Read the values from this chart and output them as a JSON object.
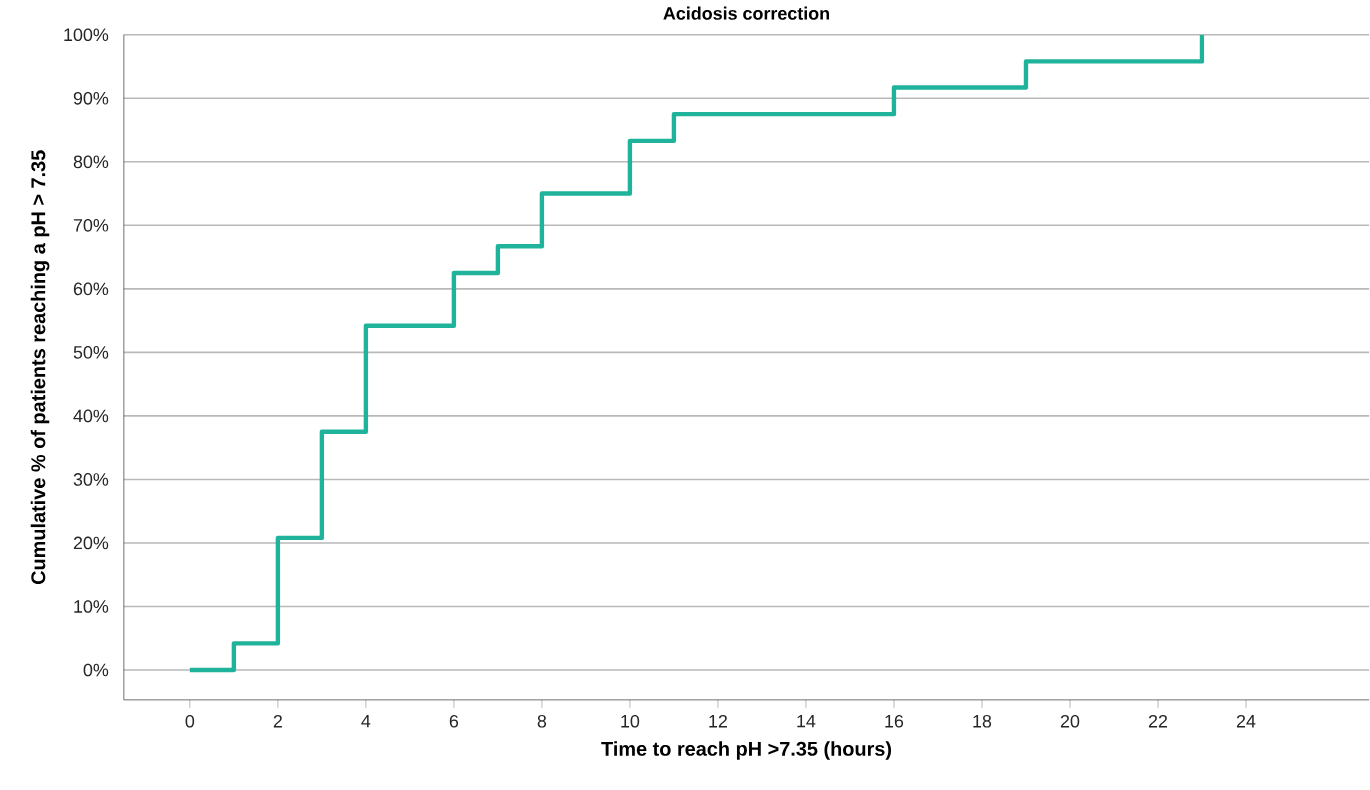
{
  "chart_data": {
    "type": "step",
    "title": "Acidosis correction",
    "xlabel": "Time to reach pH >7.35 (hours)",
    "ylabel": "Cumulative % of patients reaching a pH > 7.35",
    "x": [
      0,
      1,
      2,
      3,
      4,
      6,
      7,
      8,
      10,
      11,
      16,
      19,
      23
    ],
    "series": [
      {
        "color": "#1fb39c",
        "values": [
          0,
          4.2,
          20.8,
          37.5,
          54.2,
          62.5,
          66.7,
          75,
          83.3,
          87.5,
          91.7,
          95.8,
          100
        ]
      }
    ],
    "xlim": [
      -1.5,
      26.8
    ],
    "xticks": [
      0,
      2,
      4,
      6,
      8,
      10,
      12,
      14,
      16,
      18,
      20,
      22,
      24
    ],
    "ylim": [
      -4.7,
      100
    ],
    "yticks": [
      {
        "value": 0,
        "label": "0%"
      },
      {
        "value": 10,
        "label": "10%"
      },
      {
        "value": 20,
        "label": "20%"
      },
      {
        "value": 30,
        "label": "30%"
      },
      {
        "value": 40,
        "label": "40%"
      },
      {
        "value": 50,
        "label": "50%"
      },
      {
        "value": 60,
        "label": "60%"
      },
      {
        "value": 70,
        "label": "70%"
      },
      {
        "value": 80,
        "label": "80%"
      },
      {
        "value": 90,
        "label": "90%"
      },
      {
        "value": 100,
        "label": "100%"
      }
    ],
    "grid": "y",
    "marker": "none",
    "line_style": "solid"
  }
}
